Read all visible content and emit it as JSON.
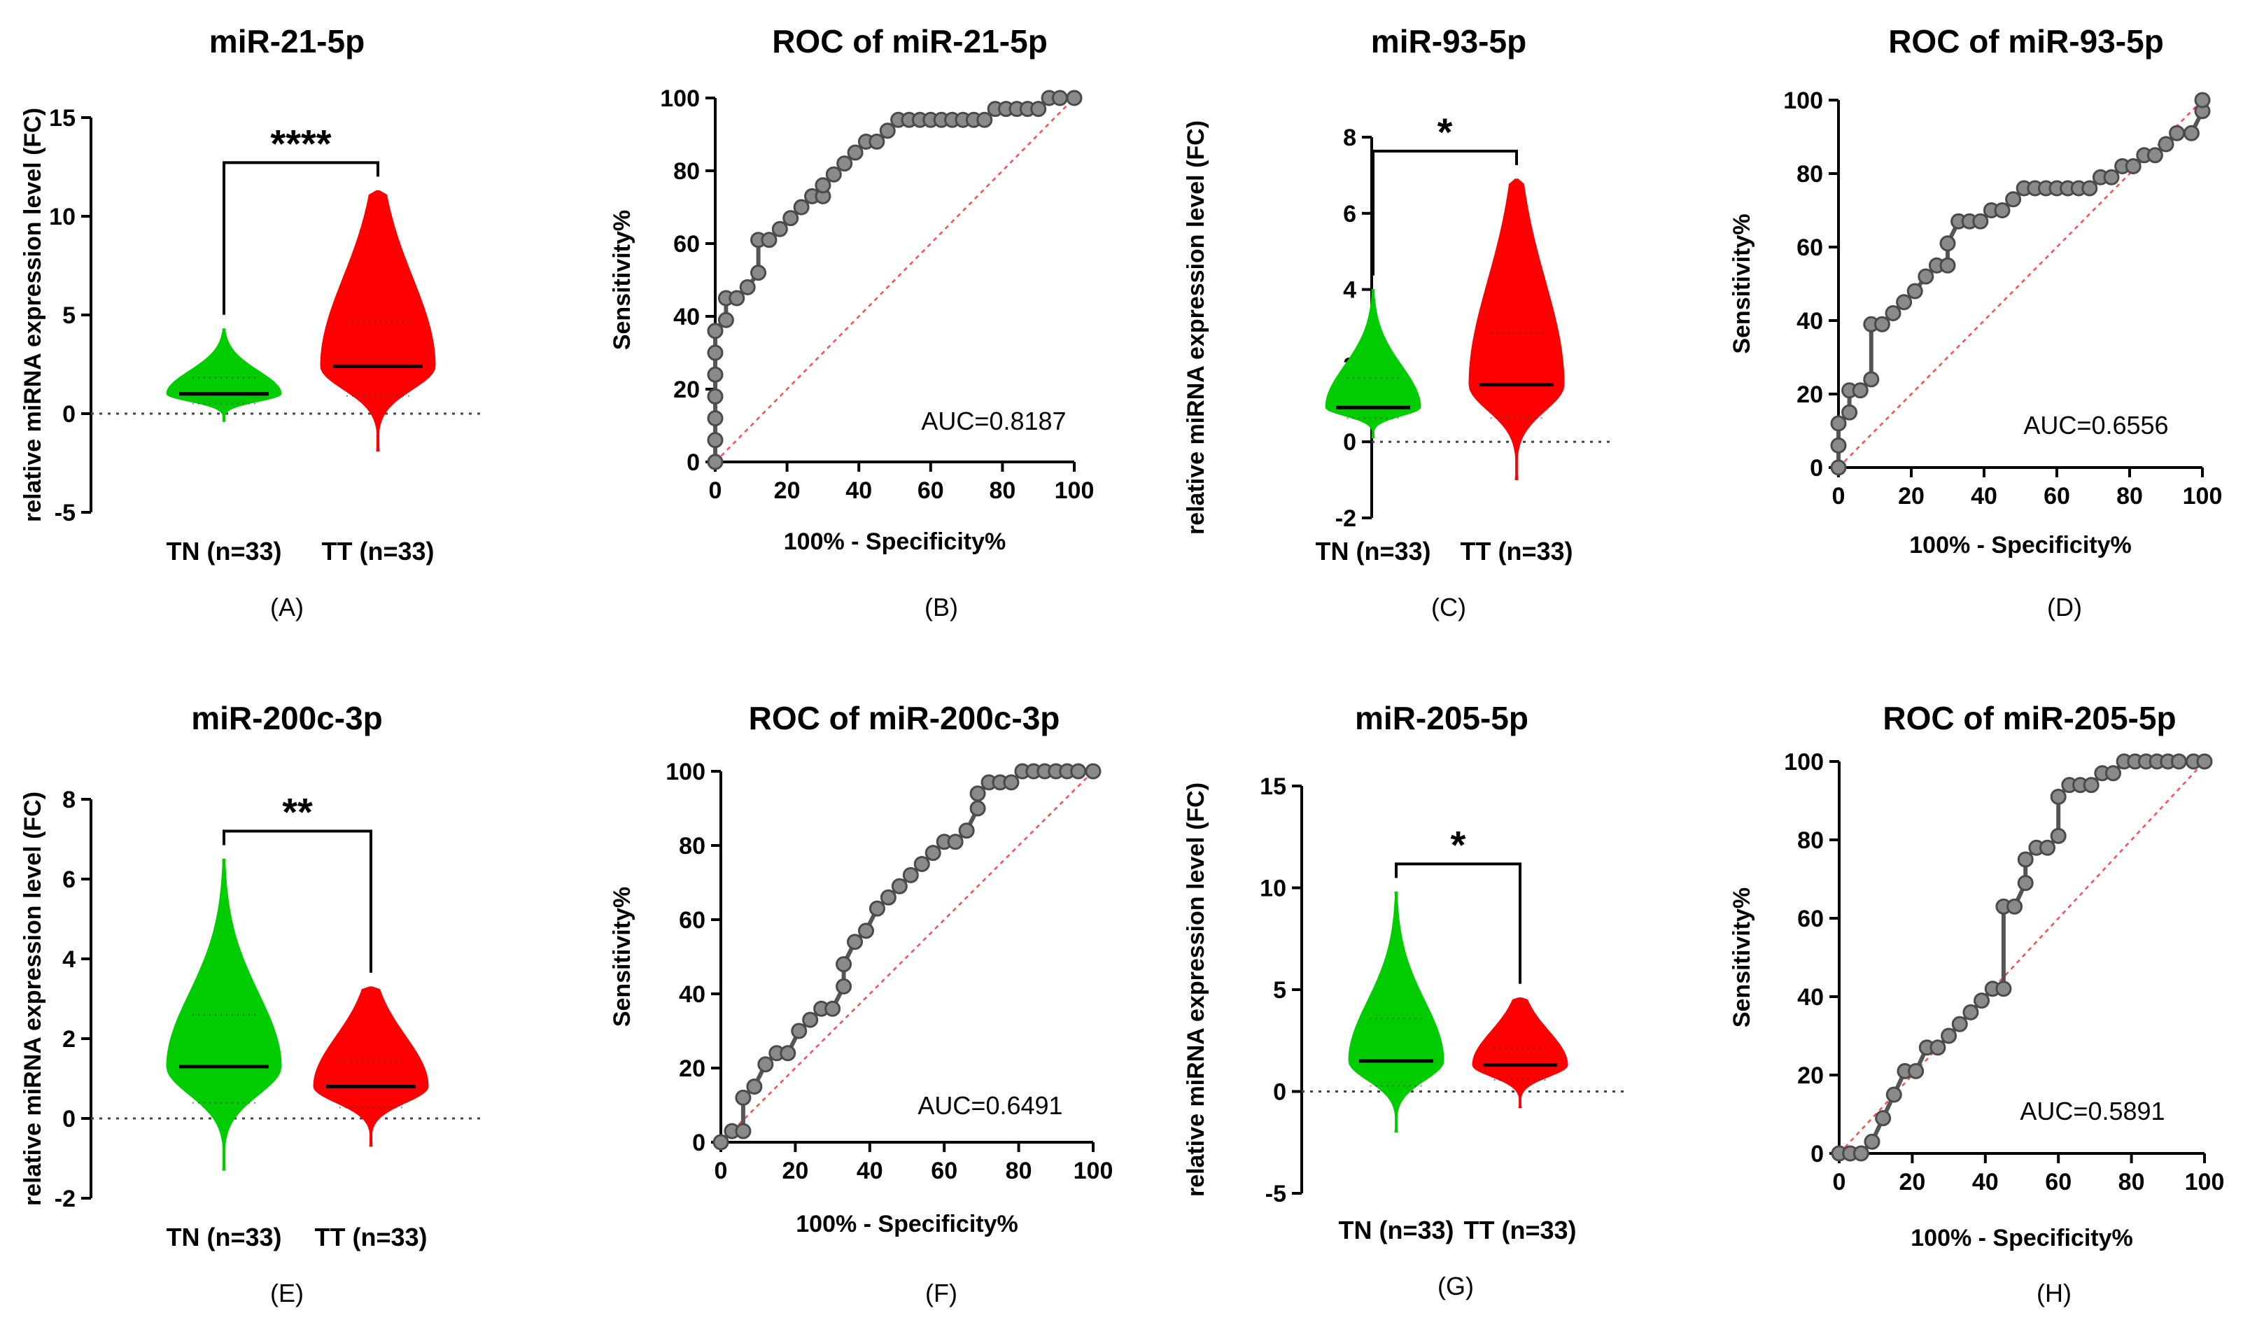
{
  "chart_data": [
    {
      "panel": "(A)",
      "type": "violin",
      "title": "miR-21-5p",
      "ylabel": "relative miRNA expression level (FC)",
      "ylim": [
        -5,
        15
      ],
      "yticks": [
        -5,
        0,
        5,
        10,
        15
      ],
      "categories": [
        "TN (n=33)",
        "TT (n=33)"
      ],
      "colors": [
        "#00cc00",
        "#ff0000"
      ],
      "medians": [
        1.0,
        2.4
      ],
      "ranges": [
        [
          -0.4,
          4.3
        ],
        [
          -1.9,
          11.3
        ]
      ],
      "significance": "****"
    },
    {
      "panel": "(B)",
      "type": "line",
      "title": "ROC of miR-21-5p",
      "xlabel": "100% - Specificity%",
      "ylabel": "Sensitivity%",
      "xlim": [
        0,
        100
      ],
      "ylim": [
        0,
        100
      ],
      "ticks": [
        0,
        20,
        40,
        60,
        80,
        100
      ],
      "auc_label": "AUC=0.8187",
      "x": [
        0,
        0,
        0,
        0,
        0,
        0,
        0,
        3,
        3,
        6,
        9,
        12,
        12,
        15,
        18,
        21,
        24,
        27,
        30,
        30,
        33,
        36,
        39,
        42,
        45,
        48,
        51,
        54,
        57,
        60,
        63,
        66,
        69,
        72,
        75,
        78,
        81,
        84,
        87,
        90,
        93,
        96,
        100
      ],
      "y": [
        0,
        6,
        12,
        18,
        24,
        30,
        36,
        39,
        45,
        45,
        48,
        52,
        61,
        61,
        64,
        67,
        70,
        73,
        73,
        76,
        79,
        82,
        85,
        88,
        88,
        91,
        94,
        94,
        94,
        94,
        94,
        94,
        94,
        94,
        94,
        97,
        97,
        97,
        97,
        97,
        100,
        100,
        100
      ]
    },
    {
      "panel": "(C)",
      "type": "violin",
      "title": "miR-93-5p",
      "ylabel": "relative miRNA expression level (FC)",
      "ylim": [
        -2,
        8
      ],
      "yticks": [
        -2,
        0,
        2,
        4,
        6,
        8
      ],
      "categories": [
        "TN (n=33)",
        "TT (n=33)"
      ],
      "colors": [
        "#00cc00",
        "#ff0000"
      ],
      "medians": [
        0.9,
        1.5
      ],
      "ranges": [
        [
          0.1,
          4.0
        ],
        [
          -1.0,
          6.9
        ]
      ],
      "significance": "*"
    },
    {
      "panel": "(D)",
      "type": "line",
      "title": "ROC of miR-93-5p",
      "xlabel": "100% - Specificity%",
      "ylabel": "Sensitivity%",
      "xlim": [
        0,
        100
      ],
      "ylim": [
        0,
        100
      ],
      "ticks": [
        0,
        20,
        40,
        60,
        80,
        100
      ],
      "auc_label": "AUC=0.6556",
      "x": [
        0,
        0,
        0,
        3,
        3,
        6,
        9,
        9,
        12,
        15,
        18,
        21,
        24,
        27,
        30,
        30,
        33,
        36,
        39,
        42,
        45,
        48,
        51,
        54,
        57,
        60,
        63,
        66,
        69,
        72,
        75,
        78,
        81,
        84,
        87,
        90,
        93,
        97,
        100,
        100
      ],
      "y": [
        0,
        6,
        12,
        15,
        21,
        21,
        24,
        39,
        39,
        42,
        45,
        48,
        52,
        55,
        55,
        61,
        67,
        67,
        67,
        70,
        70,
        73,
        76,
        76,
        76,
        76,
        76,
        76,
        76,
        79,
        79,
        82,
        82,
        85,
        85,
        88,
        91,
        91,
        97,
        100
      ]
    },
    {
      "panel": "(E)",
      "type": "violin",
      "title": "miR-200c-3p",
      "ylabel": "relative miRNA expression level (FC)",
      "ylim": [
        -2,
        8
      ],
      "yticks": [
        -2,
        0,
        2,
        4,
        6,
        8
      ],
      "categories": [
        "TN (n=33)",
        "TT (n=33)"
      ],
      "colors": [
        "#00cc00",
        "#ff0000"
      ],
      "medians": [
        1.3,
        0.8
      ],
      "ranges": [
        [
          -1.3,
          6.5
        ],
        [
          -0.7,
          3.3
        ]
      ],
      "significance": "**"
    },
    {
      "panel": "(F)",
      "type": "line",
      "title": "ROC of miR-200c-3p",
      "xlabel": "100% - Specificity%",
      "ylabel": "Sensitivity%",
      "xlim": [
        0,
        100
      ],
      "ylim": [
        0,
        100
      ],
      "ticks": [
        0,
        20,
        40,
        60,
        80,
        100
      ],
      "auc_label": "AUC=0.6491",
      "x": [
        0,
        3,
        6,
        6,
        9,
        12,
        15,
        18,
        21,
        24,
        27,
        30,
        33,
        33,
        36,
        39,
        42,
        45,
        48,
        51,
        54,
        57,
        60,
        63,
        66,
        69,
        69,
        72,
        75,
        78,
        81,
        84,
        87,
        90,
        93,
        96,
        100
      ],
      "y": [
        0,
        3,
        3,
        12,
        15,
        21,
        24,
        24,
        30,
        33,
        36,
        36,
        42,
        48,
        54,
        57,
        63,
        66,
        69,
        72,
        75,
        78,
        81,
        81,
        84,
        90,
        94,
        97,
        97,
        97,
        100,
        100,
        100,
        100,
        100,
        100,
        100
      ]
    },
    {
      "panel": "(G)",
      "type": "violin",
      "title": "miR-205-5p",
      "ylabel": "relative miRNA expression level (FC)",
      "ylim": [
        -5,
        15
      ],
      "yticks": [
        -5,
        0,
        5,
        10,
        15
      ],
      "categories": [
        "TN (n=33)",
        "TT (n=33)"
      ],
      "colors": [
        "#00cc00",
        "#ff0000"
      ],
      "medians": [
        1.5,
        1.3
      ],
      "ranges": [
        [
          -2.0,
          9.8
        ],
        [
          -0.8,
          4.6
        ]
      ],
      "significance": "*"
    },
    {
      "panel": "(H)",
      "type": "line",
      "title": "ROC of miR-205-5p",
      "xlabel": "100% - Specificity%",
      "ylabel": "Sensitivity%",
      "xlim": [
        0,
        100
      ],
      "ylim": [
        0,
        100
      ],
      "ticks": [
        0,
        20,
        40,
        60,
        80,
        100
      ],
      "auc_label": "AUC=0.5891",
      "x": [
        0,
        3,
        6,
        9,
        12,
        15,
        18,
        21,
        24,
        27,
        30,
        33,
        36,
        39,
        42,
        45,
        45,
        48,
        51,
        51,
        54,
        57,
        60,
        60,
        63,
        66,
        69,
        72,
        75,
        78,
        81,
        84,
        87,
        90,
        93,
        97,
        100
      ],
      "y": [
        0,
        0,
        0,
        3,
        9,
        15,
        21,
        21,
        27,
        27,
        30,
        33,
        36,
        39,
        42,
        42,
        63,
        63,
        69,
        75,
        78,
        78,
        81,
        91,
        94,
        94,
        94,
        97,
        97,
        100,
        100,
        100,
        100,
        100,
        100,
        100,
        100
      ]
    }
  ]
}
